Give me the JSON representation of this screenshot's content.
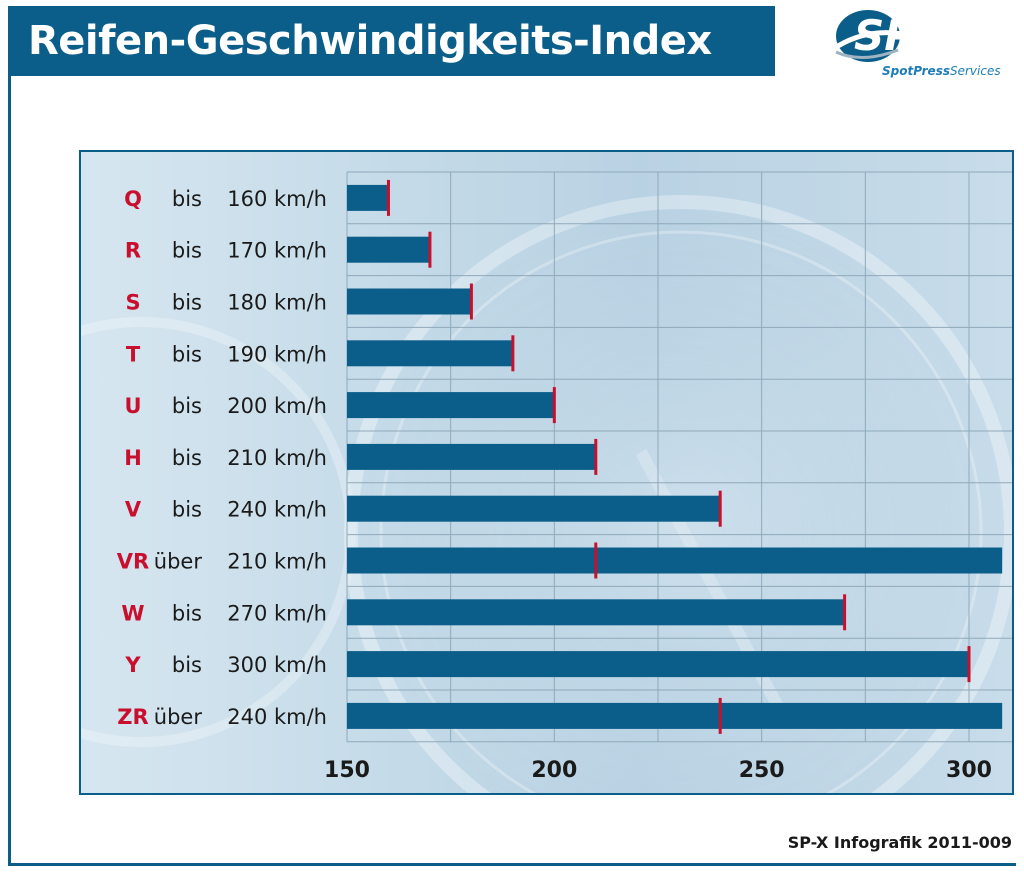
{
  "header": {
    "title": "Reifen-Geschwindigkeits-Index",
    "logo_text": "SPS",
    "logo_sub_a": "SpotPress",
    "logo_sub_b": "Services"
  },
  "footer": {
    "source": "SP-X Infografik 2011-009"
  },
  "colors": {
    "bar": "#0b5e8a",
    "marker": "#c8102e",
    "code": "#c8102e",
    "frame": "#0b5e8a"
  },
  "chart_data": {
    "type": "bar",
    "orientation": "horizontal",
    "title": "Reifen-Geschwindigkeits-Index",
    "xlim": [
      150,
      310
    ],
    "x_ticks": [
      150,
      200,
      250,
      300
    ],
    "grid": true,
    "categories": [
      {
        "code": "Q",
        "qualifier": "bis",
        "speed": "160 km/h",
        "value": 160,
        "marker": 160
      },
      {
        "code": "R",
        "qualifier": "bis",
        "speed": "170 km/h",
        "value": 170,
        "marker": 170
      },
      {
        "code": "S",
        "qualifier": "bis",
        "speed": "180 km/h",
        "value": 180,
        "marker": 180
      },
      {
        "code": "T",
        "qualifier": "bis",
        "speed": "190 km/h",
        "value": 190,
        "marker": 190
      },
      {
        "code": "U",
        "qualifier": "bis",
        "speed": "200 km/h",
        "value": 200,
        "marker": 200
      },
      {
        "code": "H",
        "qualifier": "bis",
        "speed": "210 km/h",
        "value": 210,
        "marker": 210
      },
      {
        "code": "V",
        "qualifier": "bis",
        "speed": "240 km/h",
        "value": 240,
        "marker": 240
      },
      {
        "code": "VR",
        "qualifier": "über",
        "speed": "210 km/h",
        "value": 308,
        "marker": 210
      },
      {
        "code": "W",
        "qualifier": "bis",
        "speed": "270 km/h",
        "value": 270,
        "marker": 270
      },
      {
        "code": "Y",
        "qualifier": "bis",
        "speed": "300 km/h",
        "value": 300,
        "marker": 300
      },
      {
        "code": "ZR",
        "qualifier": "über",
        "speed": "240 km/h",
        "value": 308,
        "marker": 240
      }
    ]
  }
}
